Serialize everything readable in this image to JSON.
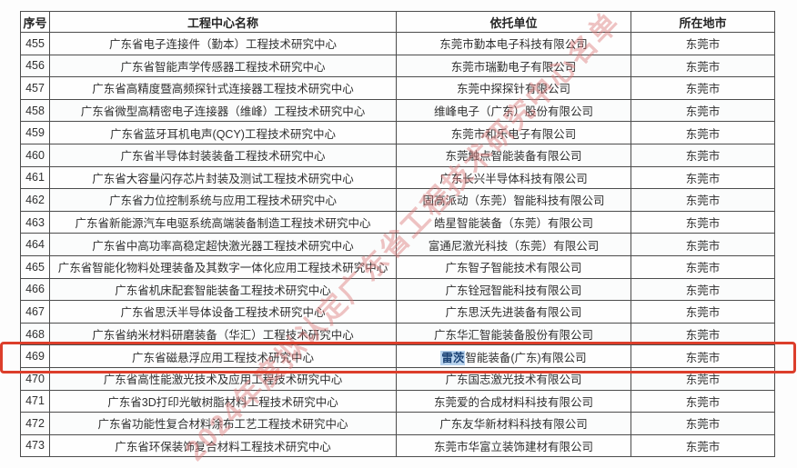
{
  "table": {
    "headers": [
      "序号",
      "工程中心名称",
      "依托单位",
      "所在地市"
    ],
    "rows": [
      {
        "no": "455",
        "name": "广东省电子连接件（勤本）工程技术研究中心",
        "org": "东莞市勤本电子科技有限公司",
        "city": "东莞市"
      },
      {
        "no": "456",
        "name": "广东省智能声学传感器工程技术研究中心",
        "org": "东莞市瑞勤电子有限公司",
        "city": "东莞市"
      },
      {
        "no": "457",
        "name": "广东省高精度暨高频探针式连接器工程技术研究中心",
        "org": "东莞中探探针有限公司",
        "city": "东莞市"
      },
      {
        "no": "458",
        "name": "广东省微型高精密电子连接器（维峰）工程技术研究中心",
        "org": "维峰电子（广东）股份有限公司",
        "city": "东莞市"
      },
      {
        "no": "459",
        "name": "广东省蓝牙耳机电声(QCY)工程技术研究中心",
        "org": "东莞市和乐电子有限公司",
        "city": "东莞市"
      },
      {
        "no": "460",
        "name": "广东省半导体封装装备工程技术研究中心",
        "org": "东莞触点智能装备有限公司",
        "city": "东莞市"
      },
      {
        "no": "461",
        "name": "广东省大容量闪存芯片封装及测试工程技术研究中心",
        "org": "广东长兴半导体科技有限公司",
        "city": "东莞市"
      },
      {
        "no": "462",
        "name": "广东省力位控制系统与应用工程技术研究中心",
        "org": "固高派动（东莞）智能科技有限公司",
        "city": "东莞市"
      },
      {
        "no": "463",
        "name": "广东省新能源汽车电驱系统高端装备制造工程技术研究中心",
        "org": "皓星智能装备（东莞）有限公司",
        "city": "东莞市"
      },
      {
        "no": "464",
        "name": "广东省中高功率高稳定超快激光器工程技术研究中心",
        "org": "富通尼激光科技（东莞）有限公司",
        "city": "东莞市"
      },
      {
        "no": "465",
        "name": "广东省智能化物料处理装备及其数字一体化应用工程技术研究中心",
        "org": "广东智子智能技术有限公司",
        "city": "东莞市"
      },
      {
        "no": "466",
        "name": "广东省机床配套智能装备工程技术研究中心",
        "org": "广东铨冠智能科技有限公司",
        "city": "东莞市"
      },
      {
        "no": "467",
        "name": "广东省思沃半导体设备工程技术研究中心",
        "org": "广东思沃先进装备有限公司",
        "city": "东莞市"
      },
      {
        "no": "468",
        "name": "广东省纳米材料研磨装备（华汇）工程技术研究中心",
        "org": "广东华汇智能装备股份有限公司",
        "city": "东莞市"
      },
      {
        "no": "469",
        "name": "广东省磁悬浮应用工程技术研究中心",
        "org_highlight": "雷茨",
        "org": "智能装备(广东)有限公司",
        "city": "东莞市",
        "boxed": true
      },
      {
        "no": "470",
        "name": "广东省高性能激光技术及应用工程技术研究中心",
        "org": "广东国志激光技术有限公司",
        "city": "东莞市"
      },
      {
        "no": "471",
        "name": "广东省3D打印光敏树脂材料工程技术研究中心",
        "org": "东莞爱的合成材料科技有限公司",
        "city": "东莞市"
      },
      {
        "no": "472",
        "name": "广东省功能性复合材料涂布工艺工程技术研究中心",
        "org": "广东友华新材料科技有限公司",
        "city": "东莞市"
      },
      {
        "no": "473",
        "name": "广东省环保装饰复合材料工程技术研究中心",
        "org": "东莞市华富立装饰建材有限公司",
        "city": "东莞市"
      }
    ]
  },
  "watermark": {
    "text": "2024年度拟认定广东省工程技术研究中心名单"
  },
  "annotation": {
    "highlighted_row_no": "469"
  },
  "colors": {
    "annotation_box": "#dc3e2b",
    "selection_background": "#b9d4ee",
    "selection_text": "#173f72",
    "watermark": "#db7a7a",
    "table_border": "#4c4c4c"
  }
}
